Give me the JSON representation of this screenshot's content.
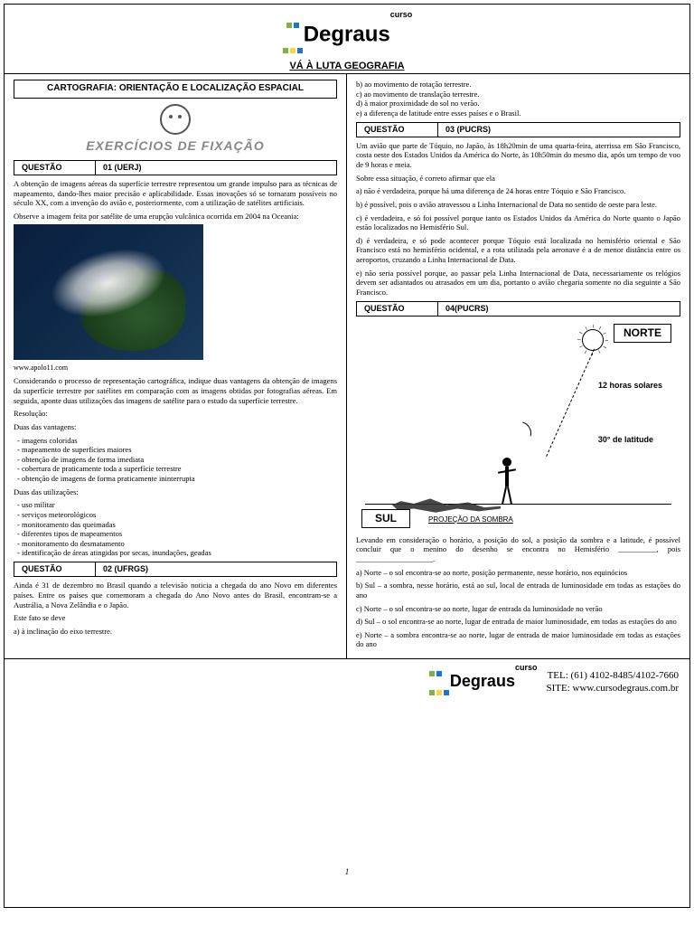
{
  "brand": {
    "name": "Degraus",
    "tagline": "curso",
    "subtitle": "VÁ À LUTA GEOGRAFIA",
    "tel": "TEL: (61) 4102-8485/4102-7660",
    "site": "SITE: www.cursodegraus.com.br"
  },
  "section_title": "CARTOGRAFIA: ORIENTAÇÃO E LOCALIZAÇÃO ESPACIAL",
  "banner": "EXERCÍCIOS DE FIXAÇÃO",
  "page_number": "1",
  "q_label": "QUESTÃO",
  "questions": {
    "q1": {
      "code": "01 (UERJ)",
      "p1": "A obtenção de imagens aéreas da superfície terrestre representou um grande impulso para as técnicas de mapeamento, dando-lhes maior precisão e aplicabilidade. Essas inovações só se tornaram possíveis no século XX, com a invenção do avião e, posteriormente, com a utilização de satélites artificiais.",
      "p2": "Observe a imagem feita por satélite de uma erupção vulcânica ocorrida em 2004 na Oceania:",
      "img_caption": "www.apolo11.com",
      "p3": "Considerando o processo de representação cartográfica, indique duas vantagens da obtenção de imagens da superfície terrestre por satélites em comparação com as imagens obtidas por fotografias aéreas. Em seguida, aponte duas utilizações das imagens de satélite para o estudo da superfície terrestre.",
      "res_label": "Resolução:",
      "vant_label": "Duas das vantagens:",
      "vantagens": [
        "- imagens coloridas",
        "- mapeamento de superfícies maiores",
        "- obtenção de imagens de forma imediata",
        "- cobertura de praticamente toda a superfície terrestre",
        "- obtenção de imagens de forma praticamente ininterrupta"
      ],
      "util_label": "Duas das utilizações:",
      "utilizacoes": [
        "- uso militar",
        "- serviços meteorológicos",
        "- monitoramento das queimadas",
        "- diferentes tipos de mapeamentos",
        "- monitoramento do desmatamento",
        "- identificação de áreas atingidas por secas, inundações, geadas"
      ]
    },
    "q2": {
      "code": "02 (UFRGS)",
      "p1": "Ainda é 31 de dezembro no Brasil quando a televisão noticia a chegada do ano Novo em diferentes países. Entre os países que comemoram a chegada do Ano Novo antes do Brasil, encontram-se a Austrália, a Nova Zelândia e o Japão.",
      "p2": "Este fato se deve",
      "opts": [
        "a) à inclinação do eixo terrestre.",
        "b) ao movimento de rotação terrestre.",
        "c) ao movimento de translação terrestre.",
        "d) à maior proximidade do sol no verão.",
        "e) a diferença de latitude entre esses países e o Brasil."
      ]
    },
    "q3": {
      "code": "03 (PUCRS)",
      "p1": "Um avião que parte de Tóquio, no Japão, às 18h20min de uma quarta-feira, aterrissa em São Francisco, costa oeste dos Estados Unidos da América do Norte, às 10h50min do mesmo dia, após um tempo de voo de 9 horas e meia.",
      "p2": "Sobre essa situação, é correto afirmar que ela",
      "opts": [
        "a) não é verdadeira, porque há uma diferença de 24 horas entre Tóquio e São Francisco.",
        "b) é possível, pois o avião atravessou a Linha Internacional de Data no sentido de oeste para leste.",
        "c) é verdadeira, e só foi possível porque tanto os Estados Unidos da América do Norte quanto o Japão estão localizados no Hemisfério Sul.",
        "d) é verdadeira, e só pode acontecer porque Tóquio está localizada no hemisfério oriental e São Francisco está no hemisfério ocidental, e a rota utilizada pela aeronave é a de menor distância entre os aeroportos, cruzando a Linha Internacional de Data.",
        "e) não seria possível porque, ao passar pela Linha Internacional de Data, necessariamente os relógios devem ser adiantados ou atrasados em um dia, portanto o avião chegaria somente no dia seguinte a São Francisco."
      ]
    },
    "q4": {
      "code": "04(PUCRS)",
      "diagram": {
        "norte": "NORTE",
        "sul": "SUL",
        "proj": "PROJEÇÃO DA SOMBRA",
        "l12h": "12 horas solares",
        "l30": "30° de latitude"
      },
      "p1": "Levando em consideração o horário, a posição do sol, a posição da sombra e a latitude, é possível concluir que o menino do desenho se encontra no Hemisfério __________, pois ____________________.",
      "opts": [
        "a) Norte – o sol encontra-se ao norte, posição permanente, nesse horário, nos equinócios",
        "b) Sul – a sombra, nesse horário, está ao sul, local de entrada de luminosidade em todas as estações do ano",
        "c) Norte – o sol encontra-se ao norte, lugar de entrada da luminosidade no verão",
        "d) Sul – o sol encontra-se ao norte, lugar de entrada de maior luminosidade, em todas as estações do ano",
        "e) Norte – a sombra encontra-se ao norte, lugar de entrada de maior luminosidade em todas as estações do ano"
      ]
    }
  }
}
